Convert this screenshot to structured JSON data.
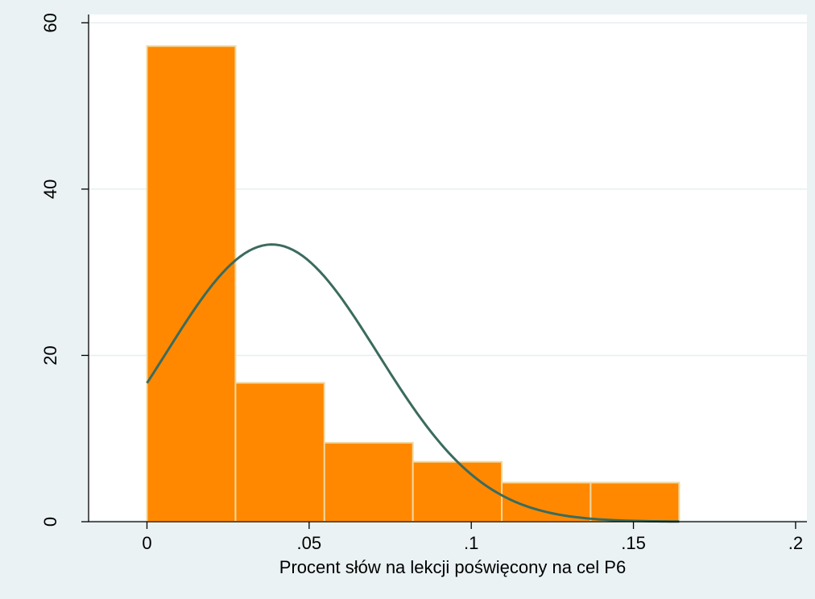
{
  "chart_data": {
    "type": "bar",
    "subtype": "histogram",
    "xlabel": "Procent słów na lekcji poświęcony na cel P6",
    "ylabel": "",
    "xlim": [
      -0.018,
      0.2035
    ],
    "ylim": [
      0,
      61
    ],
    "x_ticks": [
      {
        "value": 0,
        "label": "0"
      },
      {
        "value": 0.05,
        "label": ".05"
      },
      {
        "value": 0.1,
        "label": ".1"
      },
      {
        "value": 0.15,
        "label": ".15"
      },
      {
        "value": 0.2,
        "label": ".2"
      }
    ],
    "y_ticks": [
      {
        "value": 0,
        "label": "0"
      },
      {
        "value": 20,
        "label": "20"
      },
      {
        "value": 40,
        "label": "40"
      },
      {
        "value": 60,
        "label": "60"
      }
    ],
    "grid": true,
    "bins": [
      {
        "x0": 0.0,
        "x1": 0.0273,
        "value": 57.2
      },
      {
        "x0": 0.0273,
        "x1": 0.0547,
        "value": 16.7
      },
      {
        "x0": 0.0547,
        "x1": 0.082,
        "value": 9.5
      },
      {
        "x0": 0.082,
        "x1": 0.1094,
        "value": 7.2
      },
      {
        "x0": 0.1094,
        "x1": 0.1368,
        "value": 4.7
      },
      {
        "x0": 0.1368,
        "x1": 0.1641,
        "value": 4.7
      }
    ],
    "normal_curve": {
      "mean": 0.0385,
      "sd": 0.0327,
      "x_range": [
        0,
        0.1641
      ]
    },
    "colors": {
      "bar_fill": "#ff8800",
      "bar_edge": "#f0d8a0",
      "curve": "#3b6b5e",
      "plot_bg": "#ffffff",
      "outer_bg": "#eaf2f3",
      "grid": "#e6eef0"
    }
  }
}
